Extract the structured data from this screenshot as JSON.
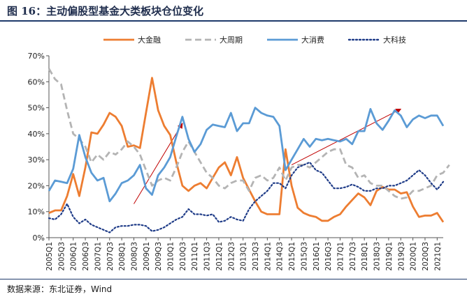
{
  "figure": {
    "title": "图 16：主动偏股型基金大类板块仓位变化",
    "source": "数据来源：东北证券，Wind"
  },
  "chart_data": {
    "type": "line",
    "title": "主动偏股型基金大类板块仓位变化",
    "xlabel": "",
    "ylabel": "",
    "ylim": [
      0,
      70
    ],
    "y_ticks": [
      "0%",
      "10%",
      "20%",
      "30%",
      "40%",
      "50%",
      "60%",
      "70%"
    ],
    "x_tick_labels": [
      "2005Q1",
      "2005Q3",
      "2006Q1",
      "2006Q3",
      "2007Q1",
      "2007Q3",
      "2008Q1",
      "2008Q3",
      "2009Q1",
      "2009Q3",
      "2010Q1",
      "2010Q3",
      "2011Q1",
      "2011Q3",
      "2012Q1",
      "2012Q3",
      "2013Q1",
      "2013Q3",
      "2014Q1",
      "2014Q3",
      "2015Q1",
      "2015Q3",
      "2016Q1",
      "2016Q3",
      "2017Q1",
      "2017Q3",
      "2018Q1",
      "2018Q3",
      "2019Q1",
      "2019Q3",
      "2020Q1",
      "2020Q3",
      "2021Q1"
    ],
    "legend_position": "top-center",
    "series": [
      {
        "name": "大金融",
        "color": "#ed7d31",
        "style": "solid",
        "values": [
          9.5,
          10.5,
          10.5,
          16,
          24.5,
          16,
          27,
          40.5,
          40,
          43.5,
          48,
          46.5,
          43,
          35,
          35.5,
          34.5,
          48,
          61.5,
          49,
          43,
          39.5,
          29,
          20,
          18,
          20,
          21,
          19,
          23,
          27,
          29,
          24,
          31,
          23,
          18.5,
          14,
          10,
          9,
          9,
          9,
          34,
          20,
          11.5,
          9.5,
          8.5,
          8,
          6.5,
          6.5,
          8,
          9,
          12,
          14.5,
          17,
          15.5,
          12.5,
          18,
          19.5,
          18.5,
          18.5,
          17,
          17.5,
          12,
          8,
          8.5,
          8.5,
          9.5,
          6
        ]
      },
      {
        "name": "大周期",
        "color": "#b4b4b4",
        "style": "dashed",
        "values": [
          65,
          61,
          59,
          49,
          40,
          38,
          35,
          29,
          32,
          30,
          33,
          32,
          34,
          37,
          35,
          32,
          26,
          20,
          22,
          23,
          22,
          27,
          33,
          37,
          33,
          29,
          25,
          23,
          20,
          19,
          21,
          22,
          22,
          18,
          23,
          24,
          22,
          23,
          27,
          22,
          27,
          28,
          28,
          27,
          29,
          31,
          33,
          34,
          34,
          28,
          27,
          23,
          24,
          21,
          20,
          20,
          18,
          16,
          15,
          15.5,
          18,
          18,
          19,
          20,
          24,
          25,
          28
        ]
      },
      {
        "name": "大消费",
        "color": "#5b9bd5",
        "style": "solid",
        "values": [
          18,
          22,
          21.5,
          21,
          26.5,
          39.5,
          31,
          25,
          22,
          23,
          14,
          17,
          21,
          22,
          24,
          28,
          19,
          16.5,
          24,
          27,
          31,
          39,
          46.5,
          38,
          33,
          36,
          41.5,
          43.5,
          43,
          42.5,
          48,
          41,
          44,
          44,
          50,
          48,
          47,
          46.5,
          43,
          26,
          30,
          34,
          38,
          35,
          38,
          37.5,
          38,
          37.5,
          37,
          38,
          36,
          41,
          41,
          49.5,
          44,
          41.5,
          45,
          49,
          47,
          42.5,
          45.5,
          47,
          46,
          47,
          47,
          43
        ]
      },
      {
        "name": "大科技",
        "color": "#1f3c88",
        "style": "dotted",
        "values": [
          7.5,
          7,
          9,
          13,
          8,
          5.5,
          7,
          5,
          4,
          3,
          2,
          4,
          4.5,
          4.5,
          5,
          5,
          4.5,
          2.5,
          3,
          4,
          5.5,
          7,
          8,
          11,
          9,
          9,
          8.5,
          9,
          6,
          6.5,
          8,
          7,
          6.5,
          11,
          14,
          16,
          18,
          21,
          21,
          19,
          24,
          27,
          28,
          29,
          26,
          25,
          22,
          19,
          19,
          19.5,
          20.5,
          19.5,
          18,
          18,
          19,
          19,
          20,
          20,
          21,
          22,
          24,
          26,
          24,
          21,
          18.5,
          21.5
        ]
      }
    ],
    "annotations": [
      {
        "type": "arrow",
        "color": "#c00000",
        "from": {
          "x": "2008Q3",
          "y": 13
        },
        "to": {
          "x": "2010Q3",
          "y": 44
        }
      },
      {
        "type": "arrow",
        "color": "#c00000",
        "from": {
          "x": "2015Q1",
          "y": 28
        },
        "to": {
          "x": "2019Q3",
          "y": 49.5
        }
      }
    ]
  }
}
